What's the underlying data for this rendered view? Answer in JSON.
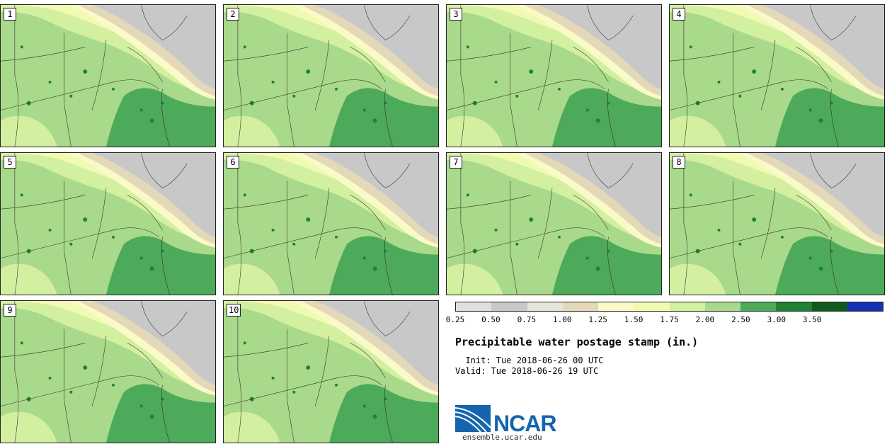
{
  "title": "Precipitable water postage stamp (in.)",
  "init": "  Init: Tue 2018-06-26 00 UTC",
  "valid": "Valid: Tue 2018-06-26 19 UTC",
  "website": "ensemble.ucar.edu",
  "logo_text": "NCAR",
  "members": [
    "1",
    "2",
    "3",
    "4",
    "5",
    "6",
    "7",
    "8",
    "9",
    "10"
  ],
  "colorbar": {
    "labels": [
      "0.25",
      "0.50",
      "0.75",
      "1.00",
      "1.25",
      "1.50",
      "1.75",
      "2.00",
      "2.50",
      "3.00",
      "3.50"
    ],
    "colors": [
      "#e0e0e0",
      "#c8c8c8",
      "#e6e6d8",
      "#e3d8b8",
      "#fafac8",
      "#f0fab0",
      "#d2f0a0",
      "#a9d98a",
      "#4daa5a",
      "#1e8232",
      "#0f5a1e",
      "#1432b4"
    ]
  }
}
